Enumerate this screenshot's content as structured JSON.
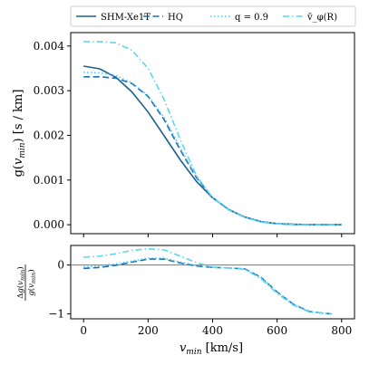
{
  "chart_data": [
    {
      "type": "line",
      "ylabel": "g(v_min) [s / km]",
      "xlim": [
        -40,
        840
      ],
      "ylim": [
        -0.0002,
        0.0043
      ],
      "xticks": [
        "0",
        "200",
        "400",
        "600",
        "800"
      ],
      "yticks": [
        "0.000",
        "0.001",
        "0.002",
        "0.003",
        "0.004"
      ],
      "ytick_values": [
        0.0,
        0.001,
        0.002,
        0.003,
        0.004
      ],
      "legend_position": "top",
      "series": [
        {
          "name": "SHM-Xe1T",
          "style": "solid",
          "color": "#1f5f8b",
          "x": [
            0,
            50,
            100,
            150,
            200,
            250,
            300,
            350,
            400,
            450,
            500,
            550,
            600,
            650,
            700,
            750,
            800
          ],
          "y": [
            0.00355,
            0.00349,
            0.0033,
            0.00297,
            0.00252,
            0.00199,
            0.00145,
            0.00097,
            0.0006,
            0.00034,
            0.00017,
            7e-05,
            2.5e-05,
            1e-05,
            3e-06,
            1e-06,
            0.0
          ]
        },
        {
          "name": "HQ",
          "style": "dashed",
          "color": "#1a6fb0",
          "x": [
            0,
            50,
            100,
            150,
            200,
            250,
            300,
            350,
            400,
            450,
            500,
            550,
            600,
            650,
            700,
            750,
            800
          ],
          "y": [
            0.00331,
            0.00331,
            0.00328,
            0.00316,
            0.00287,
            0.00235,
            0.00167,
            0.00105,
            0.00061,
            0.00034,
            0.00017,
            7e-05,
            2.2e-05,
            5e-06,
            1e-06,
            0.0,
            0.0
          ]
        },
        {
          "name": "q = 0.9",
          "style": "dotted",
          "color": "#4fc3f7",
          "x": [
            0,
            50,
            100,
            150,
            200,
            250,
            300,
            350,
            400,
            450,
            500,
            550,
            600,
            650,
            700,
            750,
            800
          ],
          "y": [
            0.00341,
            0.0034,
            0.00334,
            0.00318,
            0.00289,
            0.0024,
            0.00172,
            0.00107,
            0.00061,
            0.00034,
            0.00017,
            7e-05,
            2.2e-05,
            5e-06,
            1e-06,
            0.0,
            0.0
          ]
        },
        {
          "name": "v̄_φ(R)",
          "style": "dashdot",
          "color": "#5ad8f0",
          "x": [
            0,
            50,
            100,
            150,
            200,
            250,
            300,
            350,
            400,
            450,
            500,
            550,
            600,
            650,
            700,
            750,
            800
          ],
          "y": [
            0.0041,
            0.0041,
            0.00407,
            0.0039,
            0.0035,
            0.0028,
            0.0019,
            0.0011,
            0.0006,
            0.00033,
            0.00016,
            6e-05,
            1.8e-05,
            4e-06,
            1e-06,
            0.0,
            0.0
          ]
        }
      ]
    },
    {
      "type": "line",
      "xlabel": "v_min [km/s]",
      "ylabel": "Δg(v_min) / g(v_min)",
      "xlim": [
        -40,
        840
      ],
      "ylim": [
        -1.1,
        0.4
      ],
      "xticks": [
        "0",
        "200",
        "400",
        "600",
        "800"
      ],
      "yticks": [
        "0",
        "−1"
      ],
      "ytick_values": [
        0,
        -1
      ],
      "reference_line": 0,
      "series": [
        {
          "name": "HQ",
          "style": "dashed",
          "color": "#1a6fb0",
          "x": [
            0,
            50,
            100,
            150,
            200,
            250,
            300,
            350,
            400,
            450,
            500,
            550,
            600,
            650,
            700,
            750,
            770
          ],
          "y": [
            -0.07,
            -0.05,
            -0.005,
            0.06,
            0.12,
            0.12,
            0.04,
            -0.02,
            -0.05,
            -0.06,
            -0.08,
            -0.25,
            -0.55,
            -0.8,
            -0.95,
            -0.99,
            -1.0
          ]
        },
        {
          "name": "q = 0.9",
          "style": "dotted",
          "color": "#4fc3f7",
          "x": [
            0,
            50,
            100,
            150,
            200,
            250,
            300,
            350,
            400,
            450,
            500,
            550,
            600,
            650,
            700,
            750,
            770
          ],
          "y": [
            -0.04,
            -0.02,
            0.02,
            0.08,
            0.14,
            0.14,
            0.06,
            -0.01,
            -0.05,
            -0.06,
            -0.08,
            -0.25,
            -0.55,
            -0.8,
            -0.95,
            -0.99,
            -1.0
          ]
        },
        {
          "name": "v̄_φ(R)",
          "style": "dashdot",
          "color": "#5ad8f0",
          "x": [
            0,
            50,
            100,
            150,
            200,
            250,
            300,
            350,
            400,
            450,
            500,
            550,
            600,
            650,
            700,
            750,
            770
          ],
          "y": [
            0.16,
            0.18,
            0.23,
            0.3,
            0.33,
            0.31,
            0.18,
            0.05,
            -0.04,
            -0.06,
            -0.09,
            -0.28,
            -0.58,
            -0.82,
            -0.96,
            -0.99,
            -1.0
          ]
        }
      ]
    }
  ]
}
